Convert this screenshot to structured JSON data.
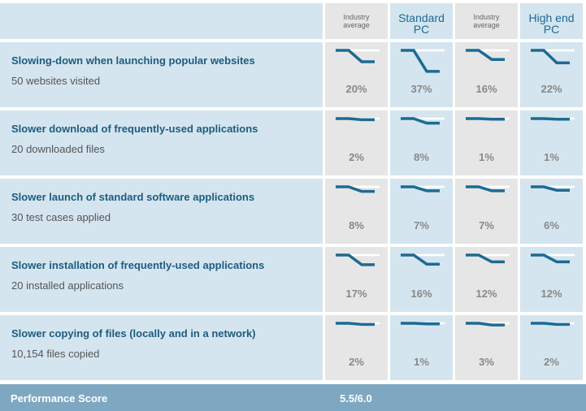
{
  "columns": [
    {
      "label_line1": "Industry",
      "label_line2": "average",
      "style": "small",
      "bg": "gray"
    },
    {
      "label_line1": "Standard",
      "label_line2": "PC",
      "style": "big",
      "bg": "blue"
    },
    {
      "label_line1": "Industry",
      "label_line2": "average",
      "style": "small",
      "bg": "gray"
    },
    {
      "label_line1": "High end",
      "label_line2": "PC",
      "style": "big",
      "bg": "blue"
    }
  ],
  "tests": [
    {
      "title": "Slowing-down when launching popular websites",
      "subtitle": "50 websites visited",
      "values": [
        "20%",
        "37%",
        "16%",
        "22%"
      ],
      "fractions": [
        0.2,
        0.37,
        0.16,
        0.22
      ]
    },
    {
      "title": "Slower download of frequently-used applications",
      "subtitle": "20 downloaded files",
      "values": [
        "2%",
        "8%",
        "1%",
        "1%"
      ],
      "fractions": [
        0.02,
        0.08,
        0.01,
        0.01
      ]
    },
    {
      "title": "Slower launch of standard software applications",
      "subtitle": "30 test cases applied",
      "values": [
        "8%",
        "7%",
        "7%",
        "6%"
      ],
      "fractions": [
        0.08,
        0.07,
        0.07,
        0.06
      ]
    },
    {
      "title": "Slower installation of frequently-used applications",
      "subtitle": "20 installed applications",
      "values": [
        "17%",
        "16%",
        "12%",
        "12%"
      ],
      "fractions": [
        0.17,
        0.16,
        0.12,
        0.12
      ]
    },
    {
      "title": "Slower copying of files (locally and in a network)",
      "subtitle": "10,154 files copied",
      "values": [
        "2%",
        "1%",
        "3%",
        "2%"
      ],
      "fractions": [
        0.02,
        0.01,
        0.03,
        0.02
      ]
    }
  ],
  "footer": {
    "label": "Performance Score",
    "score": "5.5/6.0"
  },
  "colors": {
    "accent": "#1d6a93",
    "row_bg": "#d4e5ef",
    "col_gray": "#e6e6e6",
    "footer_bg": "#7ea8c1"
  }
}
